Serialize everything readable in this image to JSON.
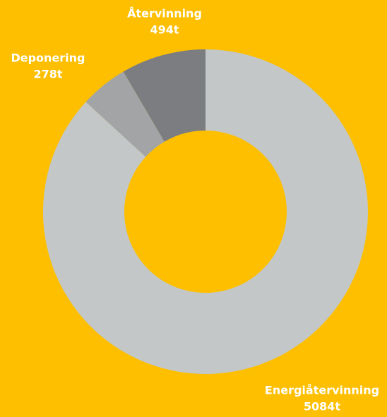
{
  "chart_data": {
    "type": "donut",
    "categories": [
      "Energiåtervinning",
      "Deponering",
      "Återvinning"
    ],
    "values": [
      5084,
      278,
      494
    ],
    "value_labels": [
      "5084t",
      "278t",
      "494t"
    ],
    "colors": [
      "#c3c7c8",
      "#a2a4a6",
      "#7b7d80"
    ]
  }
}
